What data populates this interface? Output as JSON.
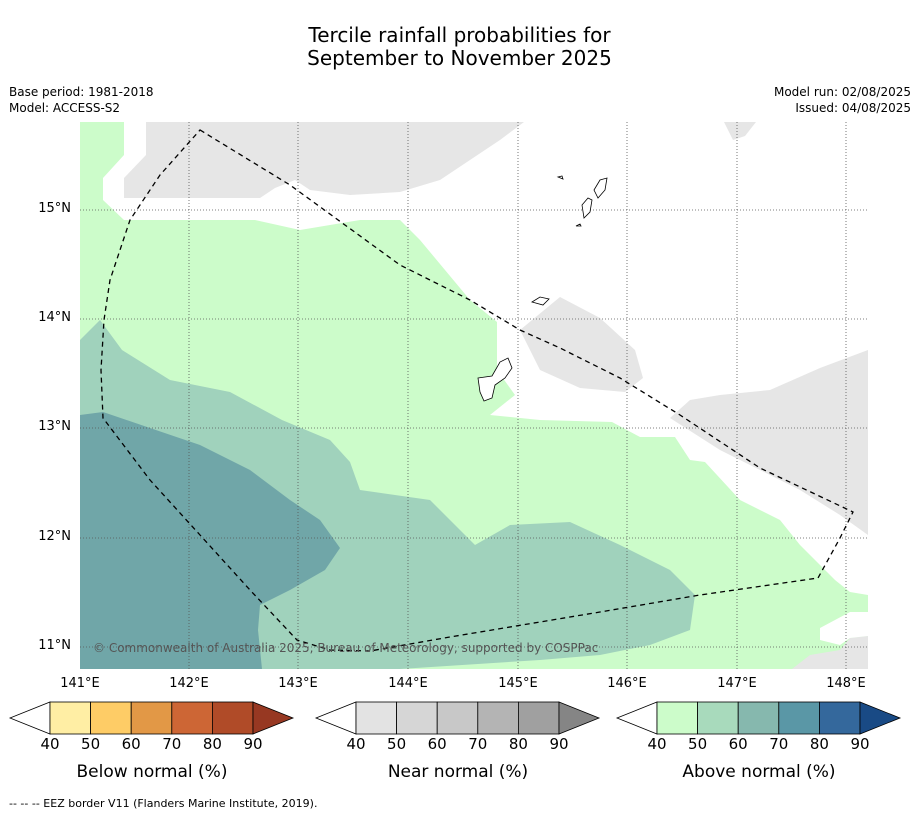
{
  "title_line1": "Tercile rainfall probabilities for",
  "title_line2": "September to November 2025",
  "base_period": "Base period: 1981-2018",
  "model": "Model: ACCESS-S2",
  "model_run": "Model run: 02/08/2025",
  "issued": "Issued: 04/08/2025",
  "lat_labels": [
    "15°N",
    "14°N",
    "13°N",
    "12°N",
    "11°N"
  ],
  "lon_labels": [
    "141°E",
    "142°E",
    "143°E",
    "144°E",
    "145°E",
    "146°E",
    "147°E",
    "148°E"
  ],
  "copyright": "© Commonwealth of Australia 2025, Bureau of Meteorology, supported by COSPPac",
  "colorbars": [
    {
      "title": "Below normal (%)",
      "ticks": [
        "40",
        "50",
        "60",
        "70",
        "80",
        "90"
      ],
      "colors": [
        "#ffffff",
        "#ffeea4",
        "#fecc66",
        "#e29846",
        "#cd6635",
        "#b04b28",
        "#973822"
      ]
    },
    {
      "title": "Near normal (%)",
      "ticks": [
        "40",
        "50",
        "60",
        "70",
        "80",
        "90"
      ],
      "colors": [
        "#ffffff",
        "#e3e3e3",
        "#d6d6d6",
        "#c8c8c8",
        "#b4b4b4",
        "#a0a0a0",
        "#858585"
      ]
    },
    {
      "title": "Above normal (%)",
      "ticks": [
        "40",
        "50",
        "60",
        "70",
        "80",
        "90"
      ],
      "colors": [
        "#ffffff",
        "#ccfcca",
        "#a8dabc",
        "#86b8ae",
        "#5a97a6",
        "#34689c",
        "#194a85"
      ]
    }
  ],
  "footnote": "-- -- -- EEZ border V11 (Flanders Marine Institute, 2019).",
  "map_colors": {
    "above_50": "#ccfcca",
    "above_60": "#a0d2bc",
    "above_70": "#70a6a8",
    "near_40": "#e6e6e6",
    "coast": "#000000"
  }
}
